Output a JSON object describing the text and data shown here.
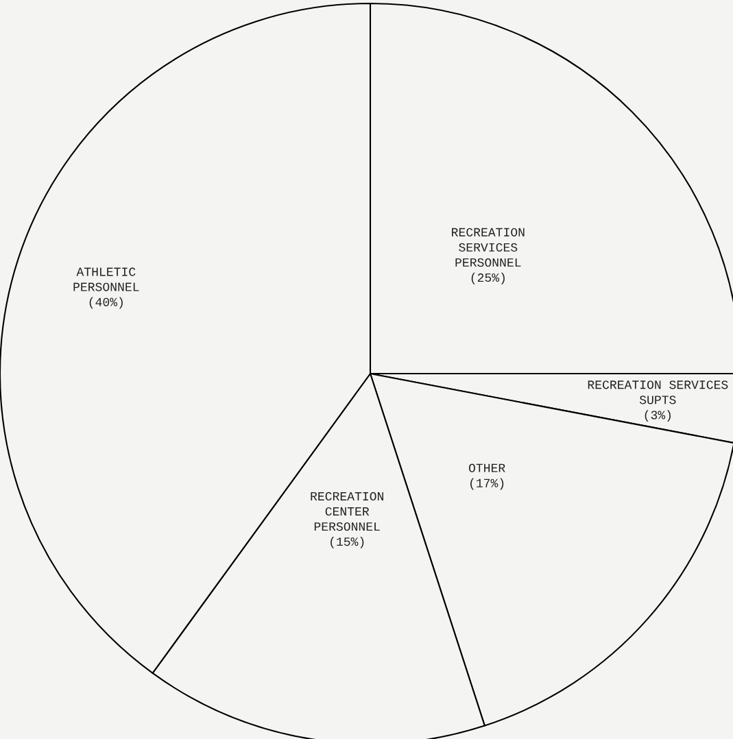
{
  "chart_data": {
    "type": "pie",
    "categories": [
      "RECREATION\nSERVICES\nPERSONNEL",
      "RECREATION SERVICES\nSUPTS",
      "OTHER",
      "RECREATION\nCENTER\nPERSONNEL",
      "ATHLETIC\nPERSONNEL"
    ],
    "values": [
      25,
      3,
      17,
      15,
      40
    ],
    "value_labels": [
      "(25%)",
      "(3%)",
      "(17%)",
      "(15%)",
      "(40%)"
    ],
    "colors": [
      "#f4f4f2",
      "#f4f4f2",
      "#f4f4f2",
      "#f4f4f2",
      "#f4f4f2"
    ]
  }
}
